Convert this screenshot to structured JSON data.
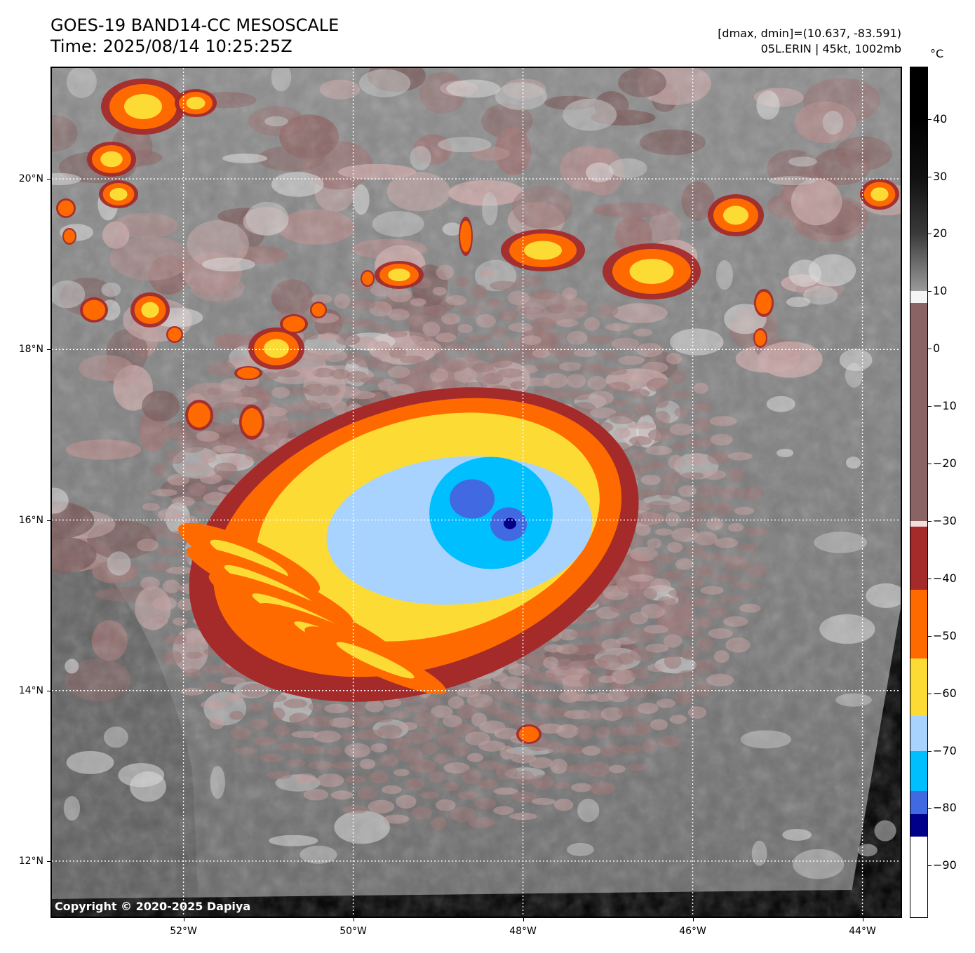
{
  "header": {
    "title": "GOES-19 BAND14-CC MESOSCALE",
    "time": "Time: 2025/08/14 10:25:25Z",
    "dmax_dmin": "[dmax, dmin]=(10.637, -83.591)",
    "storm": "05L.ERIN | 45kt, 1002mb"
  },
  "map": {
    "copyright": "Copyright © 2020-2025 Dapiya",
    "lat_labels": [
      {
        "text": "20°N",
        "lat": 20
      },
      {
        "text": "18°N",
        "lat": 18
      },
      {
        "text": "16°N",
        "lat": 16
      },
      {
        "text": "14°N",
        "lat": 14
      },
      {
        "text": "12°N",
        "lat": 12
      }
    ],
    "lon_labels": [
      {
        "text": "52°W",
        "lon": -52
      },
      {
        "text": "50°W",
        "lon": -50
      },
      {
        "text": "48°W",
        "lon": -48
      },
      {
        "text": "46°W",
        "lon": -46
      },
      {
        "text": "44°W",
        "lon": -44
      }
    ],
    "lon_range": [
      -53.55,
      -43.55
    ],
    "lat_range": [
      11.35,
      21.3
    ],
    "storm_center": {
      "lon": -48.5,
      "lat": 16.0
    }
  },
  "colorbar": {
    "unit": "°C",
    "range": [
      -99,
      49
    ],
    "tick_labels": [
      "40",
      "30",
      "20",
      "10",
      "0",
      "−10",
      "−20",
      "−30",
      "−40",
      "−50",
      "−60",
      "−70",
      "−80",
      "−90"
    ],
    "tick_values": [
      40,
      30,
      20,
      10,
      0,
      -10,
      -20,
      -30,
      -40,
      -50,
      -60,
      -70,
      -80,
      -90
    ],
    "bands": [
      {
        "from": 49,
        "to": 40,
        "color": "#000000"
      },
      {
        "from": 40,
        "to": 30,
        "color": "#101010"
      },
      {
        "from": 30,
        "to": 20,
        "color": "#3a3a3a"
      },
      {
        "from": 20,
        "to": 10,
        "color": "#9a9a9a"
      },
      {
        "from": 10,
        "to": 8,
        "color": "#f4f4f4"
      },
      {
        "from": 8,
        "to": -30,
        "color": "#8a6464"
      },
      {
        "from": -30,
        "to": -31,
        "color": "#f3dede"
      },
      {
        "from": -31,
        "to": -42,
        "color": "#a52a2a"
      },
      {
        "from": -42,
        "to": -54,
        "color": "#ff6a00"
      },
      {
        "from": -54,
        "to": -64,
        "color": "#fddb35"
      },
      {
        "from": -64,
        "to": -70,
        "color": "#a8d3ff"
      },
      {
        "from": -70,
        "to": -77,
        "color": "#00bfff"
      },
      {
        "from": -77,
        "to": -81,
        "color": "#4169e1"
      },
      {
        "from": -81,
        "to": -85,
        "color": "#00008b"
      },
      {
        "from": -85,
        "to": -99,
        "color": "#ffffff"
      }
    ]
  }
}
